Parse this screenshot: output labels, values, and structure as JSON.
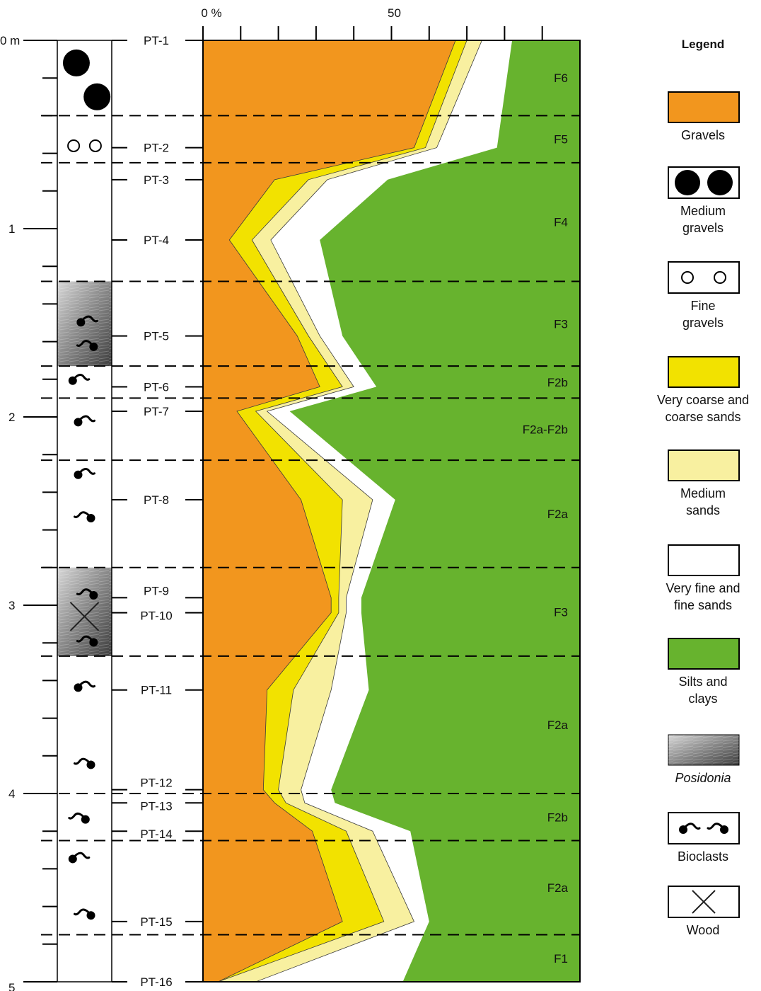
{
  "chart_data": {
    "type": "area",
    "stacked": true,
    "orientation": "vertical-depth",
    "x_axis": {
      "range": [
        0,
        100
      ],
      "tick_step": 10,
      "tick_labels": [
        {
          "value": 0,
          "label": "0 %"
        },
        {
          "value": 50,
          "label": "50"
        }
      ]
    },
    "depth_axis": {
      "unit": "m",
      "range": [
        0,
        5
      ],
      "tick_step": 0.2,
      "major_labels": [
        {
          "value": 0,
          "label": "0 m"
        },
        {
          "value": 1,
          "label": "1"
        },
        {
          "value": 2,
          "label": "2"
        },
        {
          "value": 3,
          "label": "3"
        },
        {
          "value": 4,
          "label": "4"
        },
        {
          "value": 5,
          "label": "5"
        }
      ]
    },
    "samples": [
      {
        "label": "PT-1",
        "depth": 0.0
      },
      {
        "label": "PT-2",
        "depth": 0.57
      },
      {
        "label": "PT-3",
        "depth": 0.74
      },
      {
        "label": "PT-4",
        "depth": 1.06
      },
      {
        "label": "PT-5",
        "depth": 1.57
      },
      {
        "label": "PT-6",
        "depth": 1.84
      },
      {
        "label": "PT-7",
        "depth": 1.97
      },
      {
        "label": "PT-8",
        "depth": 2.44
      },
      {
        "label": "PT-9",
        "depth": 2.96
      },
      {
        "label": "PT-10",
        "depth": 3.04
      },
      {
        "label": "PT-11",
        "depth": 3.45
      },
      {
        "label": "PT-12",
        "depth": 3.98
      },
      {
        "label": "PT-13",
        "depth": 4.05
      },
      {
        "label": "PT-14",
        "depth": 4.2
      },
      {
        "label": "PT-15",
        "depth": 4.68
      },
      {
        "label": "PT-16",
        "depth": 5.0
      }
    ],
    "series": [
      {
        "name": "Gravels",
        "color": "#F2961E",
        "values": [
          67,
          56,
          19,
          7,
          25,
          31,
          9,
          26,
          34,
          34,
          17,
          16,
          19,
          29,
          37,
          4
        ]
      },
      {
        "name": "Very coarse and coarse sands",
        "color": "#F2E200",
        "values": [
          3,
          3,
          9,
          6,
          3,
          6,
          5,
          11,
          2,
          2,
          7,
          4,
          3,
          9,
          11,
          0
        ]
      },
      {
        "name": "Medium sands",
        "color": "#F8F0A0",
        "values": [
          4,
          3,
          5,
          5,
          3,
          3,
          3,
          8,
          2,
          2,
          10,
          6,
          5,
          7,
          8,
          10
        ]
      },
      {
        "name": "Very fine and fine sands",
        "color": "#FFFFFF",
        "values": [
          8,
          16,
          16,
          13,
          6,
          6,
          6,
          6,
          4,
          4,
          10,
          8,
          8,
          10,
          4,
          39
        ]
      },
      {
        "name": "Silts and clays",
        "color": "#67B32E",
        "values": [
          18,
          22,
          51,
          69,
          63,
          54,
          77,
          49,
          58,
          58,
          56,
          66,
          65,
          45,
          40,
          47
        ]
      }
    ],
    "facies": [
      {
        "label": "F6",
        "top": 0.0,
        "bottom": 0.4
      },
      {
        "label": "F5",
        "top": 0.4,
        "bottom": 0.65
      },
      {
        "label": "F4",
        "top": 0.65,
        "bottom": 1.28
      },
      {
        "label": "F3",
        "top": 1.28,
        "bottom": 1.73
      },
      {
        "label": "F2b",
        "top": 1.73,
        "bottom": 1.9
      },
      {
        "label": "F2a-F2b",
        "top": 1.9,
        "bottom": 2.23
      },
      {
        "label": "F2a",
        "top": 2.23,
        "bottom": 2.8
      },
      {
        "label": "F3",
        "top": 2.8,
        "bottom": 3.27
      },
      {
        "label": "F2a",
        "top": 3.27,
        "bottom": 4.0
      },
      {
        "label": "F2b",
        "top": 4.0,
        "bottom": 4.25
      },
      {
        "label": "F2a",
        "top": 4.25,
        "bottom": 4.75
      },
      {
        "label": "F1",
        "top": 4.75,
        "bottom": 5.0
      }
    ],
    "lithology": {
      "posidonia_intervals": [
        [
          1.28,
          1.73
        ],
        [
          2.8,
          3.27
        ]
      ],
      "symbols": [
        {
          "type": "medium-gravel",
          "depth": 0.12,
          "pos": 0.35
        },
        {
          "type": "medium-gravel",
          "depth": 0.3,
          "pos": 0.73
        },
        {
          "type": "fine-gravel",
          "depth": 0.56,
          "pos": 0.3
        },
        {
          "type": "fine-gravel",
          "depth": 0.56,
          "pos": 0.7
        },
        {
          "type": "bioclast-right",
          "depth": 1.49,
          "pos": 0.55
        },
        {
          "type": "bioclast-left",
          "depth": 1.62,
          "pos": 0.55
        },
        {
          "type": "bioclast-right",
          "depth": 1.8,
          "pos": 0.4
        },
        {
          "type": "bioclast-right",
          "depth": 2.02,
          "pos": 0.5
        },
        {
          "type": "bioclast-right",
          "depth": 2.3,
          "pos": 0.5
        },
        {
          "type": "bioclast-left",
          "depth": 2.53,
          "pos": 0.5
        },
        {
          "type": "bioclast-left",
          "depth": 2.94,
          "pos": 0.55
        },
        {
          "type": "wood",
          "depth": 3.06,
          "pos": 0.5
        },
        {
          "type": "bioclast-left",
          "depth": 3.19,
          "pos": 0.55
        },
        {
          "type": "bioclast-right",
          "depth": 3.43,
          "pos": 0.5
        },
        {
          "type": "bioclast-left",
          "depth": 3.84,
          "pos": 0.5
        },
        {
          "type": "bioclast-left",
          "depth": 4.13,
          "pos": 0.4
        },
        {
          "type": "bioclast-right",
          "depth": 4.34,
          "pos": 0.4
        },
        {
          "type": "bioclast-left",
          "depth": 4.64,
          "pos": 0.5
        }
      ]
    },
    "legend": {
      "title": "Legend",
      "items": [
        {
          "label": "Gravels",
          "swatch": "fill",
          "color": "#F2961E"
        },
        {
          "label": "Medium gravels",
          "swatch": "medium-gravel"
        },
        {
          "label": "Fine gravels",
          "swatch": "fine-gravel"
        },
        {
          "label": "Very coarse and coarse sands",
          "swatch": "fill",
          "color": "#F2E200"
        },
        {
          "label": "Medium sands",
          "swatch": "fill",
          "color": "#F8F0A0"
        },
        {
          "label": "Very fine and fine sands",
          "swatch": "fill",
          "color": "#FFFFFF"
        },
        {
          "label": "Silts and clays",
          "swatch": "fill",
          "color": "#67B32E"
        },
        {
          "label": "Posidonia",
          "swatch": "posidonia",
          "italic": true
        },
        {
          "label": "Bioclasts",
          "swatch": "bioclasts"
        },
        {
          "label": "Wood",
          "swatch": "wood"
        }
      ]
    }
  }
}
